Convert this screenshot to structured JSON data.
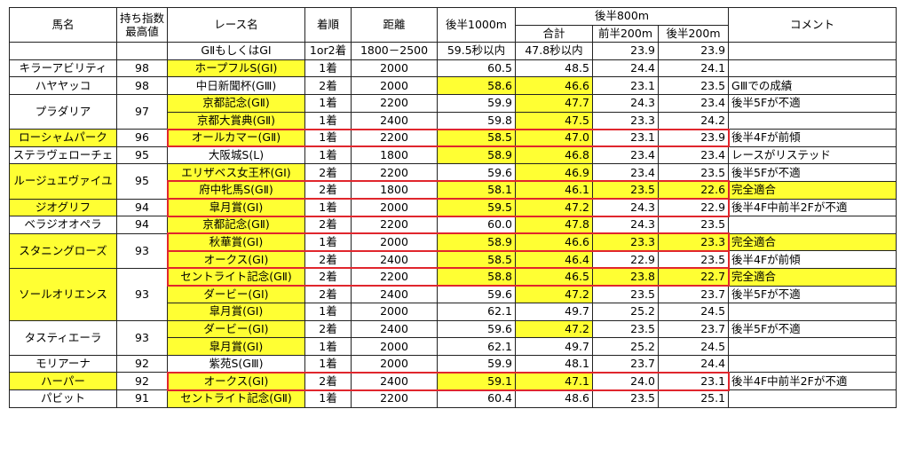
{
  "header": {
    "horse": "馬名",
    "index": "持ち指数\n最高値",
    "race": "レース名",
    "place": "着順",
    "distance": "距離",
    "last1000": "後半1000m",
    "last800": "後半800m",
    "total": "合計",
    "first200": "前半200m",
    "second200": "後半200m",
    "comment": "コメント"
  },
  "criteria": {
    "race": "GⅡもしくはGⅠ",
    "place": "1or2着",
    "distance": "1800－2500",
    "last1000": "59.5秒以内",
    "total": "47.8秒以内",
    "first200": "23.9",
    "second200": "23.9"
  },
  "rows": [
    {
      "horse": "キラーアビリティ",
      "index": "98",
      "race": "ホープフルS(GⅠ)",
      "place": "1着",
      "distance": "2000",
      "last1000": "60.5",
      "total": "48.5",
      "first200": "24.4",
      "second200": "24.1",
      "comment": ""
    },
    {
      "horse": "ハヤヤッコ",
      "index": "98",
      "race": "中日新聞杯(GⅢ)",
      "place": "2着",
      "distance": "2000",
      "last1000": "58.6",
      "total": "46.6",
      "first200": "23.1",
      "second200": "23.5",
      "comment": "GⅢでの成績"
    },
    {
      "horse": "プラダリア",
      "index": "97",
      "race": "京都記念(GⅡ)",
      "place": "1着",
      "distance": "2200",
      "last1000": "59.9",
      "total": "47.7",
      "first200": "24.3",
      "second200": "23.4",
      "comment": "後半5Fが不適"
    },
    {
      "horse": "",
      "index": "",
      "race": "京都大賞典(GⅡ)",
      "place": "1着",
      "distance": "2400",
      "last1000": "59.8",
      "total": "47.5",
      "first200": "23.3",
      "second200": "24.2",
      "comment": ""
    },
    {
      "horse": "ローシャムパーク",
      "index": "96",
      "race": "オールカマー(GⅡ)",
      "place": "1着",
      "distance": "2200",
      "last1000": "58.5",
      "total": "47.0",
      "first200": "23.1",
      "second200": "23.9",
      "comment": "後半4Fが前傾"
    },
    {
      "horse": "ステラヴェローチェ",
      "index": "95",
      "race": "大阪城S(L)",
      "place": "1着",
      "distance": "1800",
      "last1000": "58.9",
      "total": "46.8",
      "first200": "23.4",
      "second200": "23.4",
      "comment": "レースがリステッド"
    },
    {
      "horse": "ルージュエヴァイユ",
      "index": "95",
      "race": "エリザベス女王杯(GⅠ)",
      "place": "2着",
      "distance": "2200",
      "last1000": "59.6",
      "total": "46.9",
      "first200": "23.4",
      "second200": "23.5",
      "comment": "後半5Fが不適"
    },
    {
      "horse": "",
      "index": "",
      "race": "府中牝馬S(GⅡ)",
      "place": "2着",
      "distance": "1800",
      "last1000": "58.1",
      "total": "46.1",
      "first200": "23.5",
      "second200": "22.6",
      "comment": "完全適合"
    },
    {
      "horse": "ジオグリフ",
      "index": "94",
      "race": "皐月賞(GⅠ)",
      "place": "1着",
      "distance": "2000",
      "last1000": "59.5",
      "total": "47.2",
      "first200": "24.3",
      "second200": "22.9",
      "comment": "後半4F中前半2Fが不適"
    },
    {
      "horse": "ベラジオオペラ",
      "index": "94",
      "race": "京都記念(GⅡ)",
      "place": "2着",
      "distance": "2200",
      "last1000": "60.0",
      "total": "47.8",
      "first200": "24.3",
      "second200": "23.5",
      "comment": ""
    },
    {
      "horse": "スタニングローズ",
      "index": "93",
      "race": "秋華賞(GⅠ)",
      "place": "1着",
      "distance": "2000",
      "last1000": "58.9",
      "total": "46.6",
      "first200": "23.3",
      "second200": "23.3",
      "comment": "完全適合"
    },
    {
      "horse": "",
      "index": "",
      "race": "オークス(GⅠ)",
      "place": "2着",
      "distance": "2400",
      "last1000": "58.5",
      "total": "46.4",
      "first200": "22.9",
      "second200": "23.5",
      "comment": "後半4Fが前傾"
    },
    {
      "horse": "ソールオリエンス",
      "index": "93",
      "race": "セントライト記念(GⅡ)",
      "place": "2着",
      "distance": "2200",
      "last1000": "58.8",
      "total": "46.5",
      "first200": "23.8",
      "second200": "22.7",
      "comment": "完全適合"
    },
    {
      "horse": "",
      "index": "",
      "race": "ダービー(GⅠ)",
      "place": "2着",
      "distance": "2400",
      "last1000": "59.6",
      "total": "47.2",
      "first200": "23.5",
      "second200": "23.7",
      "comment": "後半5Fが不適"
    },
    {
      "horse": "",
      "index": "",
      "race": "皐月賞(GⅠ)",
      "place": "1着",
      "distance": "2000",
      "last1000": "62.1",
      "total": "49.7",
      "first200": "25.2",
      "second200": "24.5",
      "comment": ""
    },
    {
      "horse": "タスティエーラ",
      "index": "93",
      "race": "ダービー(GⅠ)",
      "place": "2着",
      "distance": "2400",
      "last1000": "59.6",
      "total": "47.2",
      "first200": "23.5",
      "second200": "23.7",
      "comment": "後半5Fが不適"
    },
    {
      "horse": "",
      "index": "",
      "race": "皐月賞(GⅠ)",
      "place": "1着",
      "distance": "2000",
      "last1000": "62.1",
      "total": "49.7",
      "first200": "25.2",
      "second200": "24.5",
      "comment": ""
    },
    {
      "horse": "モリアーナ",
      "index": "92",
      "race": "紫苑S(GⅢ)",
      "place": "1着",
      "distance": "2000",
      "last1000": "59.9",
      "total": "48.1",
      "first200": "23.7",
      "second200": "24.4",
      "comment": ""
    },
    {
      "horse": "ハーパー",
      "index": "92",
      "race": "オークス(GⅠ)",
      "place": "2着",
      "distance": "2400",
      "last1000": "59.1",
      "total": "47.1",
      "first200": "24.0",
      "second200": "23.1",
      "comment": "後半4F中前半2Fが不適"
    },
    {
      "horse": "パビット",
      "index": "91",
      "race": "セントライト記念(GⅡ)",
      "place": "1着",
      "distance": "2200",
      "last1000": "60.4",
      "total": "48.6",
      "first200": "23.5",
      "second200": "25.1",
      "comment": ""
    }
  ],
  "colors": {
    "highlight": "#ffff33",
    "frame": "#e0262d"
  }
}
